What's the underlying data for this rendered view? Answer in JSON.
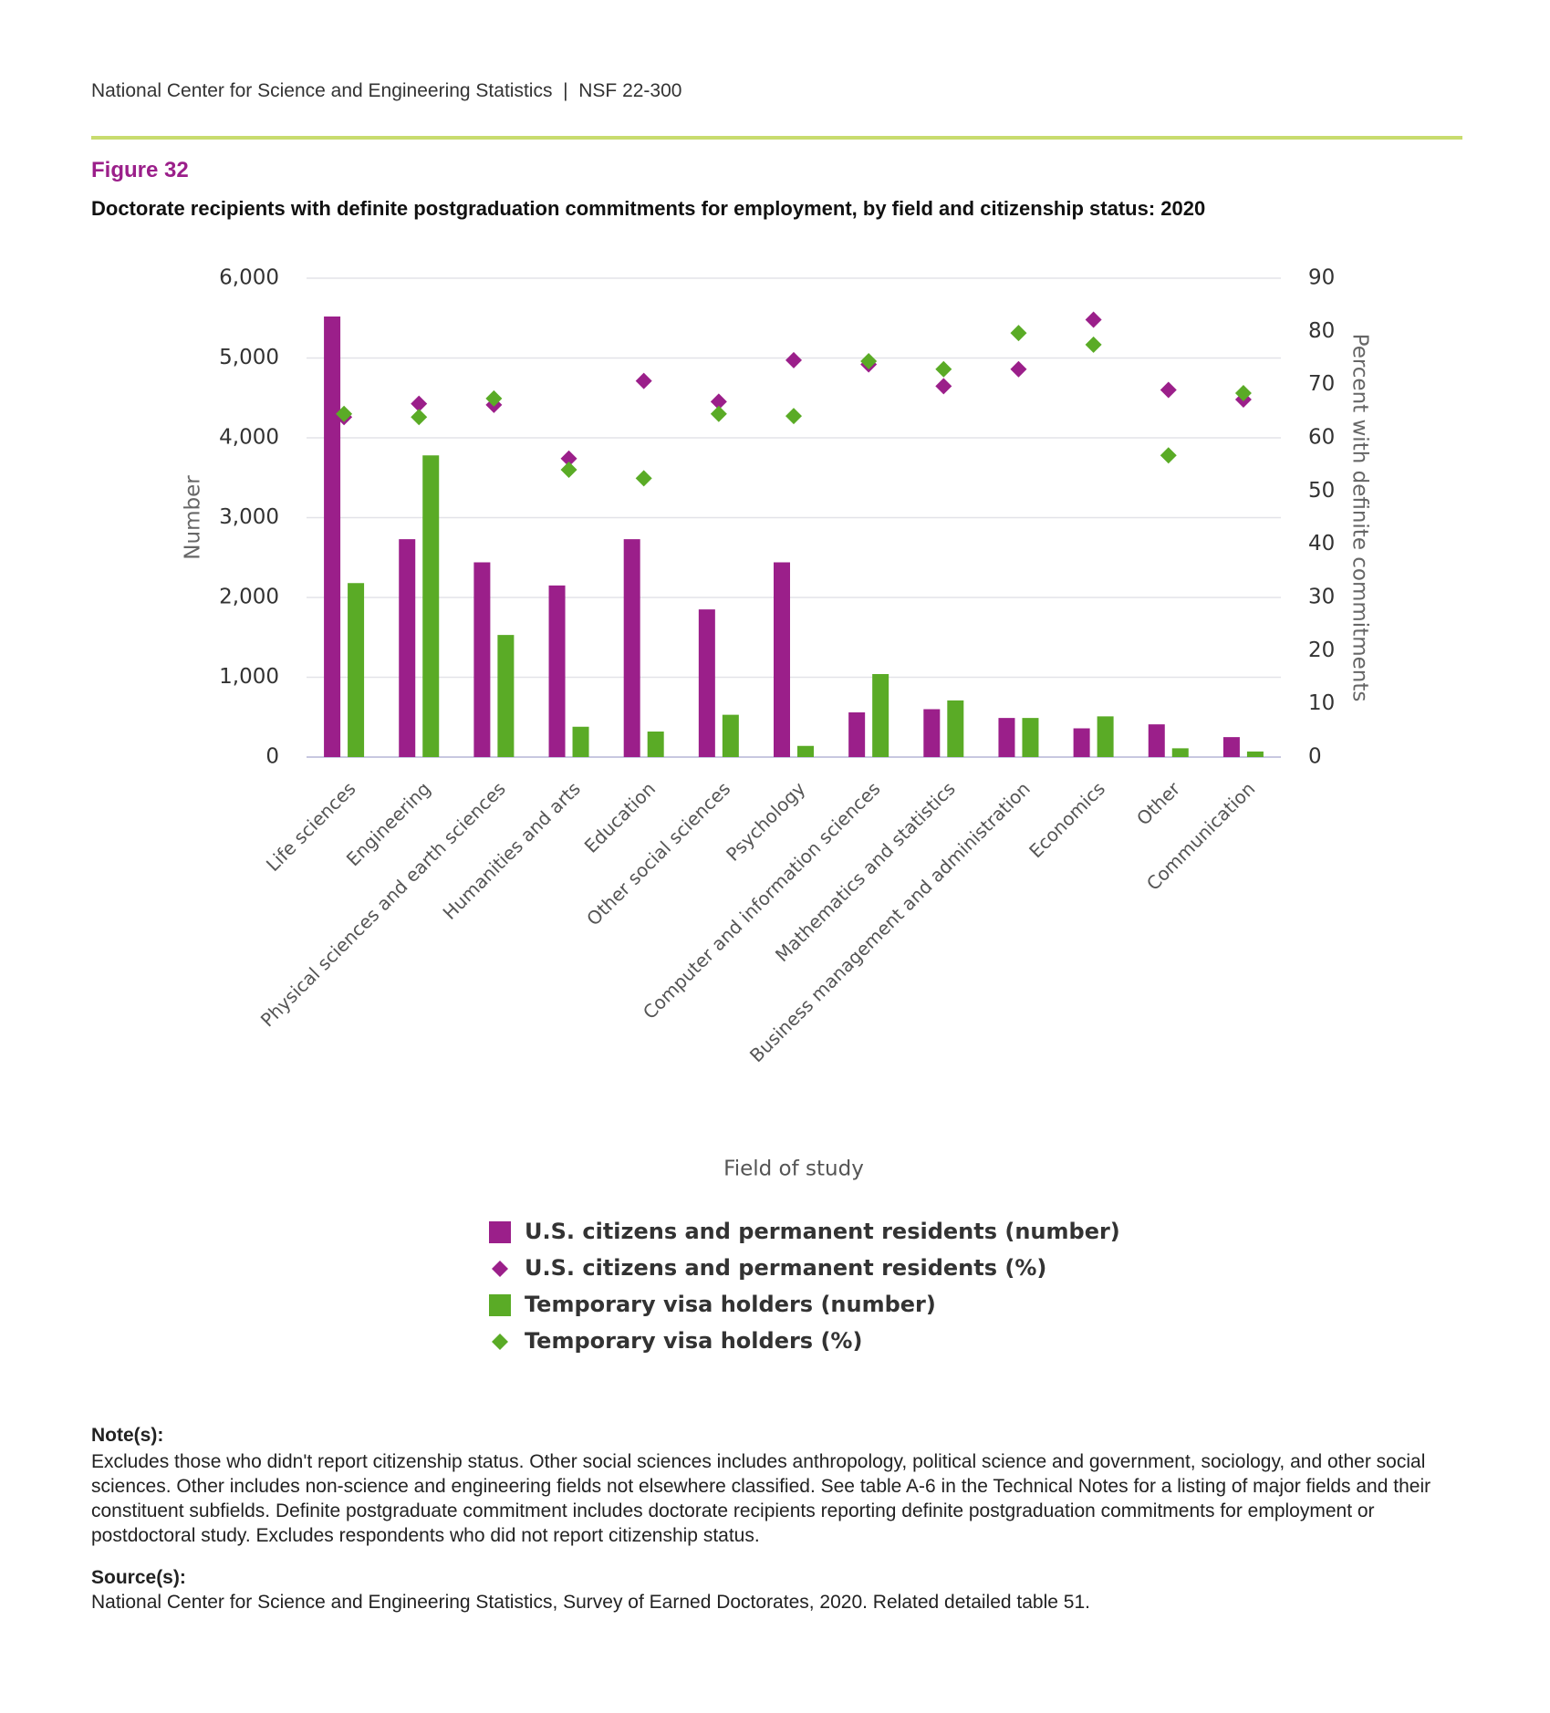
{
  "header": "National Center for Science and Engineering Statistics  |  NSF 22-300",
  "figure_label": "Figure 32",
  "chart_data": {
    "type": "bar",
    "title": "Doctorate recipients with definite postgraduation commitments for employment, by field and citizenship status: 2020",
    "x_label": "Field of study",
    "y_label": "Number",
    "y2_label": "Percent with definite commitments",
    "categories": [
      "Life sciences",
      "Engineering",
      "Physical sciences and earth sciences",
      "Humanities and arts",
      "Education",
      "Other social sciences",
      "Psychology",
      "Computer and information sciences",
      "Mathematics and statistics",
      "Business management and administration",
      "Economics",
      "Other",
      "Communication"
    ],
    "ylim": [
      0,
      6000
    ],
    "yticks": [
      0,
      {
        "value": 1000,
        "label": "1,000"
      },
      {
        "value": 2000,
        "label": "2,000"
      },
      {
        "value": 3000,
        "label": "3,000"
      },
      {
        "value": 4000,
        "label": "4,000"
      },
      {
        "value": 5000,
        "label": "5,000"
      },
      {
        "value": 6000,
        "label": "6,000"
      }
    ],
    "y2lim": [
      0,
      90
    ],
    "y2ticks": [
      0,
      10,
      20,
      30,
      40,
      50,
      60,
      70,
      80,
      90
    ],
    "grid": true,
    "series": [
      {
        "name": "U.S. citizens and permanent residents (number)",
        "type": "bar",
        "color": "#9b1f8a",
        "values": [
          5520,
          2730,
          2440,
          2150,
          2730,
          1850,
          2440,
          560,
          600,
          490,
          360,
          410,
          250
        ]
      },
      {
        "name": "U.S. citizens and permanent residents (%)",
        "type": "scatter",
        "axis": "y2",
        "color": "#9b1f8a",
        "values": [
          63.9,
          66.4,
          66.2,
          56.1,
          70.7,
          66.8,
          74.6,
          73.8,
          69.7,
          72.9,
          82.2,
          69.0,
          67.2
        ]
      },
      {
        "name": "Temporary visa holders (number)",
        "type": "bar",
        "color": "#5aab26",
        "values": [
          2180,
          3780,
          1530,
          380,
          320,
          530,
          140,
          1040,
          710,
          490,
          510,
          110,
          70
        ]
      },
      {
        "name": "Temporary visa holders (%)",
        "type": "scatter",
        "axis": "y2",
        "color": "#5aab26",
        "values": [
          64.5,
          63.9,
          67.4,
          54.0,
          52.4,
          64.5,
          64.1,
          74.4,
          72.9,
          79.7,
          77.5,
          56.7,
          68.4
        ]
      }
    ]
  },
  "notes": {
    "heading": "Note(s):",
    "text": "Excludes those who didn't report citizenship status. Other social sciences includes anthropology, political science and government, sociology, and other social sciences. Other includes non-science and engineering fields not elsewhere classified. See table A-6 in the Technical Notes for a listing of major fields and their constituent subfields. Definite postgraduate commitment includes doctorate recipients reporting definite postgraduation commitments for employment or postdoctoral study. Excludes respondents who did not report citizenship status."
  },
  "source": {
    "heading": "Source(s):",
    "text": "National Center for Science and Engineering Statistics, Survey of Earned Doctorates, 2020. Related detailed table 51."
  }
}
